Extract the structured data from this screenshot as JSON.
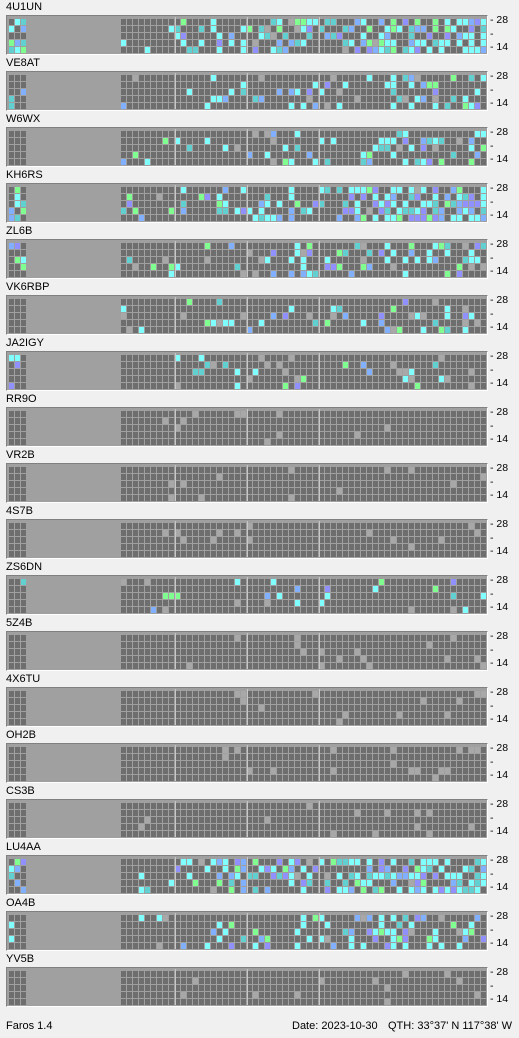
{
  "bands": {
    "top": "28",
    "mid": "-",
    "bottom": "14"
  },
  "colors": {
    "strip_bg": "#a0a0a0",
    "cell_off": "#6e6e6e",
    "cell_light": "#a8a8a8",
    "cyan": "#80ffff",
    "green": "#80ff90",
    "blue": "#80b0ff",
    "purple": "#9090ff",
    "teal": "#60d0d0"
  },
  "beacons": [
    {
      "callsign": "4U1UN",
      "activity": "high",
      "seed": 11
    },
    {
      "callsign": "VE8AT",
      "activity": "medium",
      "seed": 23
    },
    {
      "callsign": "W6WX",
      "activity": "medium",
      "seed": 37
    },
    {
      "callsign": "KH6RS",
      "activity": "high",
      "seed": 41
    },
    {
      "callsign": "ZL6B",
      "activity": "medium",
      "seed": 53
    },
    {
      "callsign": "VK6RBP",
      "activity": "low",
      "seed": 67
    },
    {
      "callsign": "JA2IGY",
      "activity": "low",
      "seed": 71
    },
    {
      "callsign": "RR9O",
      "activity": "none",
      "seed": 83
    },
    {
      "callsign": "VR2B",
      "activity": "none",
      "seed": 97
    },
    {
      "callsign": "4S7B",
      "activity": "none",
      "seed": 101
    },
    {
      "callsign": "ZS6DN",
      "activity": "low",
      "seed": 113
    },
    {
      "callsign": "5Z4B",
      "activity": "none",
      "seed": 127
    },
    {
      "callsign": "4X6TU",
      "activity": "none",
      "seed": 131
    },
    {
      "callsign": "OH2B",
      "activity": "none",
      "seed": 139
    },
    {
      "callsign": "CS3B",
      "activity": "none",
      "seed": 149
    },
    {
      "callsign": "LU4AA",
      "activity": "high",
      "seed": 157
    },
    {
      "callsign": "OA4B",
      "activity": "medium",
      "seed": 163
    },
    {
      "callsign": "YV5B",
      "activity": "none",
      "seed": 173
    }
  ],
  "status": {
    "app": "Faros 1.4",
    "date": "Date: 2023-10-30",
    "qth": "QTH: 33°37' N  117°38' W"
  }
}
